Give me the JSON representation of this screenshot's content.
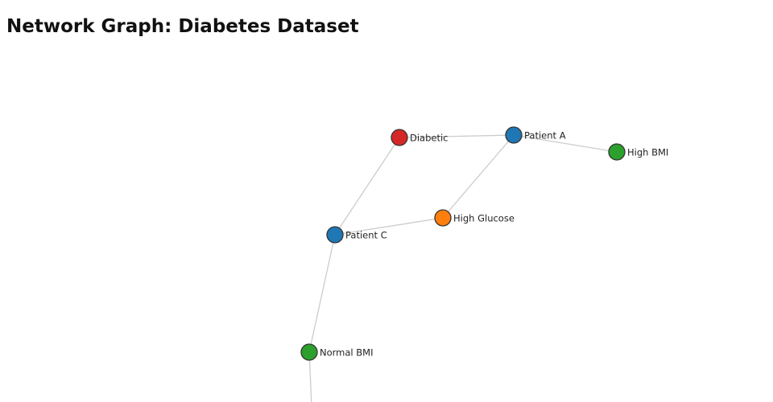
{
  "title": "Network Graph: Diabetes Dataset",
  "nodes": [
    {
      "label": "Diabetic",
      "color": "#d62728"
    },
    {
      "label": "Patient A",
      "color": "#1f77b4"
    },
    {
      "label": "High BMI",
      "color": "#2ca02c"
    },
    {
      "label": "High Glucose",
      "color": "#ff7f0e"
    },
    {
      "label": "Patient C",
      "color": "#1f77b4"
    },
    {
      "label": "Normal BMI",
      "color": "#2ca02c"
    }
  ]
}
